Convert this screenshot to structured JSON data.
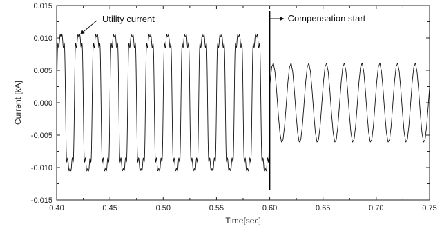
{
  "chart_data": {
    "type": "line",
    "title": "",
    "xlabel": "Time[sec]",
    "ylabel": "Current [kA]",
    "xlim": [
      0.4,
      0.75
    ],
    "ylim": [
      -0.015,
      0.015
    ],
    "x_ticks": [
      "0.40",
      "0.45",
      "0.50",
      "0.55",
      "0.60",
      "0.65",
      "0.70",
      "0.75"
    ],
    "y_ticks": [
      "0.015",
      "0.010",
      "0.005",
      "0.000",
      "-0.005",
      "-0.010",
      "-0.015"
    ],
    "grid": false,
    "line_color": "#111111",
    "series": [
      {
        "segments": [
          {
            "x_range": [
              0.4,
              0.6
            ],
            "waveform": "distorted sinusoid with harmonics",
            "fundamental_hz": 60,
            "peak": 0.0105
          },
          {
            "x_range": [
              0.6,
              0.75
            ],
            "waveform": "sinusoid",
            "fundamental_hz": 60,
            "peak": 0.006
          }
        ]
      }
    ],
    "event_marker_x": 0.6,
    "annotations": [
      {
        "text": "Utility current",
        "x": 0.42,
        "y": 0.0095
      },
      {
        "text": "Compensation start",
        "x": 0.6,
        "y": 0.0128
      }
    ]
  }
}
